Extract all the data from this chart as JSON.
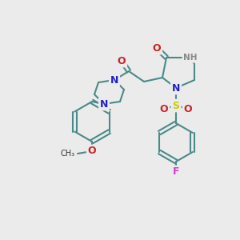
{
  "bg_color": "#ebebeb",
  "bond_color": "#4a8a8a",
  "bond_width": 1.5,
  "atom_colors": {
    "N": "#2222cc",
    "O": "#cc2222",
    "S": "#cccc00",
    "F": "#cc44cc",
    "H": "#888888"
  },
  "fig_size": [
    3.0,
    3.0
  ],
  "dpi": 100
}
